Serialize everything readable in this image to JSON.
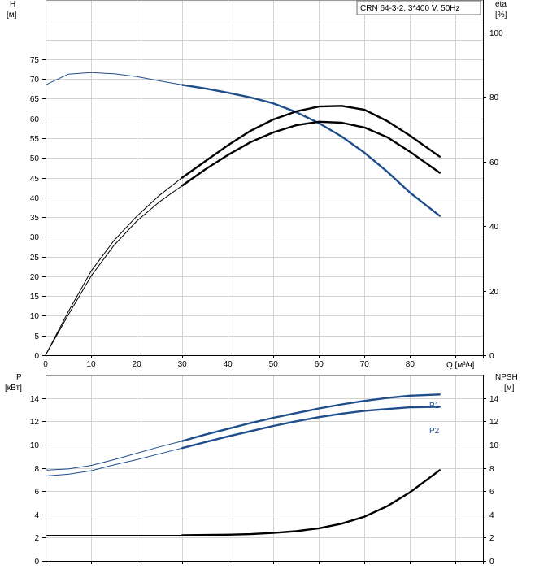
{
  "chart_data": [
    {
      "type": "line",
      "panel": "upper",
      "legend_text": "CRN 64-3-2, 3*400 V, 50Hz",
      "legend_placement": "top-right",
      "grid": true,
      "xlabel": "Q [м³/ч]",
      "x_ticks": [
        0,
        10,
        20,
        30,
        40,
        50,
        60,
        70,
        80
      ],
      "xlim": [
        0,
        96
      ],
      "y_left": {
        "label_line1": "H",
        "label_line2": "[м]",
        "ticks": [
          0,
          5,
          10,
          15,
          20,
          25,
          30,
          35,
          40,
          45,
          50,
          55,
          60,
          65,
          70,
          75
        ],
        "lim": [
          0,
          90
        ]
      },
      "y_right": {
        "label_line1": "eta",
        "label_line2": "[%]",
        "ticks": [
          0,
          20,
          40,
          60,
          80,
          100
        ],
        "lim": [
          0,
          110
        ]
      },
      "series": [
        {
          "id": "H",
          "axis": "left",
          "color": "#1f4e8c",
          "thin_until": 30,
          "x": [
            0,
            5,
            10,
            15,
            20,
            25,
            30,
            35,
            40,
            45,
            50,
            55,
            60,
            65,
            70,
            75,
            80,
            86.5
          ],
          "y": [
            68.5,
            71.2,
            71.6,
            71.3,
            70.6,
            69.5,
            68.5,
            67.6,
            66.5,
            65.3,
            63.8,
            61.6,
            58.8,
            55.4,
            51.3,
            46.5,
            41.2,
            35.3
          ]
        },
        {
          "id": "eta_upper",
          "axis": "right",
          "color": "#000000",
          "thin_until": 30,
          "x": [
            0,
            5,
            10,
            15,
            20,
            25,
            30,
            35,
            40,
            45,
            50,
            55,
            60,
            65,
            70,
            75,
            80,
            86.5
          ],
          "y": [
            0,
            13.5,
            26,
            35.5,
            43,
            49.5,
            55,
            60,
            65,
            69.5,
            73,
            75.5,
            77,
            77.2,
            76,
            72.5,
            68,
            61.5
          ]
        },
        {
          "id": "eta_lower",
          "axis": "right",
          "color": "#000000",
          "thin_until": 30,
          "x": [
            0,
            5,
            10,
            15,
            20,
            25,
            30,
            35,
            40,
            45,
            50,
            55,
            60,
            65,
            70,
            75,
            80,
            86.5
          ],
          "y": [
            0,
            12.5,
            24.5,
            34,
            41.5,
            47.5,
            52.5,
            57.5,
            62,
            66,
            69,
            71.2,
            72.3,
            72,
            70.5,
            67.5,
            63,
            56.5
          ]
        }
      ]
    },
    {
      "type": "line",
      "panel": "lower",
      "grid": true,
      "xlim": [
        0,
        96
      ],
      "y_left": {
        "label_line1": "P",
        "label_line2": "[кВт]",
        "ticks": [
          0,
          2,
          4,
          6,
          8,
          10,
          12,
          14
        ],
        "lim": [
          0,
          16
        ]
      },
      "y_right": {
        "label_line1": "NPSH",
        "label_line2": "[м]",
        "ticks": [
          0,
          2,
          4,
          6,
          8,
          10,
          12,
          14
        ],
        "lim": [
          0,
          16
        ]
      },
      "series": [
        {
          "id": "P1",
          "name": "P1",
          "axis": "left",
          "color": "#1f4e8c",
          "thin_until": 30,
          "x": [
            0,
            5,
            10,
            15,
            20,
            25,
            30,
            35,
            40,
            45,
            50,
            55,
            60,
            65,
            70,
            75,
            80,
            86.5
          ],
          "y": [
            7.8,
            7.9,
            8.2,
            8.7,
            9.25,
            9.8,
            10.3,
            10.85,
            11.35,
            11.85,
            12.3,
            12.7,
            13.1,
            13.45,
            13.75,
            14.0,
            14.2,
            14.3
          ]
        },
        {
          "id": "P2",
          "name": "P2",
          "axis": "left",
          "color": "#1f4e8c",
          "thin_until": 30,
          "x": [
            0,
            5,
            10,
            15,
            20,
            25,
            30,
            35,
            40,
            45,
            50,
            55,
            60,
            65,
            70,
            75,
            80,
            86.5
          ],
          "y": [
            7.3,
            7.45,
            7.75,
            8.25,
            8.7,
            9.2,
            9.7,
            10.2,
            10.7,
            11.15,
            11.6,
            12.0,
            12.35,
            12.65,
            12.9,
            13.05,
            13.2,
            13.25
          ]
        },
        {
          "id": "NPSH",
          "axis": "right",
          "color": "#000000",
          "thin_until": 30,
          "x": [
            0,
            10,
            20,
            30,
            40,
            45,
            50,
            55,
            60,
            65,
            70,
            75,
            80,
            86.5
          ],
          "y": [
            2.2,
            2.2,
            2.2,
            2.2,
            2.25,
            2.3,
            2.4,
            2.55,
            2.8,
            3.2,
            3.8,
            4.7,
            5.9,
            7.8
          ]
        }
      ]
    }
  ]
}
